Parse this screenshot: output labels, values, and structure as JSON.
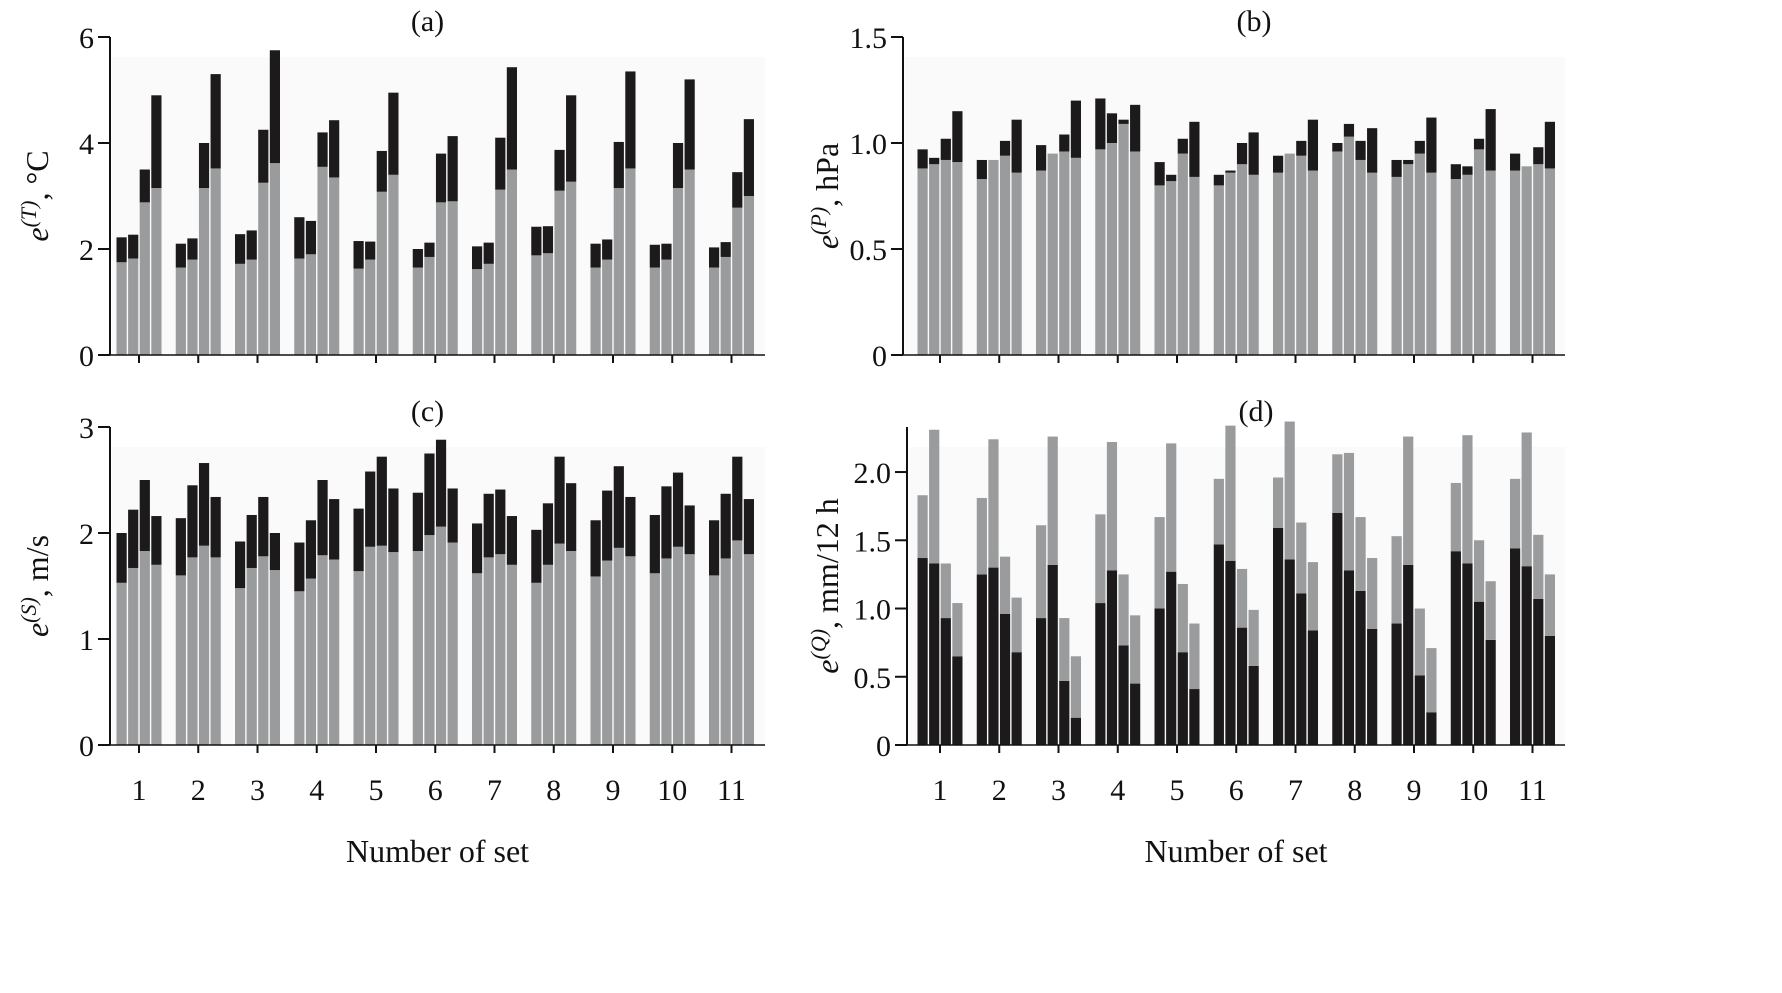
{
  "colors": {
    "gray": "#9a9b9d",
    "black": "#1c1a1b",
    "plot_bg": "#fafafa"
  },
  "chart_data": [
    {
      "type": "bar",
      "stacked": true,
      "panel_label": "(a)",
      "ylabel": {
        "base": "e",
        "sup": "(T)",
        "unit": ", °C"
      },
      "xlabel": "Number of set",
      "categories": [
        "1",
        "2",
        "3",
        "4",
        "5",
        "6",
        "7",
        "8",
        "9",
        "10",
        "11"
      ],
      "ylim": [
        0,
        6
      ],
      "yticks": [
        "0",
        "2",
        "4",
        "6"
      ],
      "ytick_values": [
        0,
        2,
        4,
        6
      ],
      "lower_color": "gray",
      "upper_color": "black",
      "lower": [
        [
          1.75,
          1.82,
          2.88,
          3.15
        ],
        [
          1.65,
          1.8,
          3.15,
          3.52
        ],
        [
          1.72,
          1.8,
          3.25,
          3.62
        ],
        [
          1.82,
          1.9,
          3.55,
          3.35
        ],
        [
          1.63,
          1.8,
          3.08,
          3.4
        ],
        [
          1.65,
          1.85,
          2.88,
          2.9
        ],
        [
          1.62,
          1.72,
          3.12,
          3.5
        ],
        [
          1.88,
          1.92,
          3.1,
          3.27
        ],
        [
          1.65,
          1.8,
          3.15,
          3.52
        ],
        [
          1.65,
          1.8,
          3.15,
          3.5
        ],
        [
          1.65,
          1.85,
          2.78,
          3.0
        ]
      ],
      "total": [
        [
          2.22,
          2.27,
          3.5,
          4.9
        ],
        [
          2.1,
          2.2,
          4.0,
          5.3
        ],
        [
          2.28,
          2.35,
          4.25,
          5.75
        ],
        [
          2.6,
          2.53,
          4.2,
          4.43
        ],
        [
          2.15,
          2.14,
          3.85,
          4.95
        ],
        [
          2.0,
          2.12,
          3.8,
          4.13
        ],
        [
          2.05,
          2.12,
          4.1,
          5.43
        ],
        [
          2.42,
          2.43,
          3.87,
          4.9
        ],
        [
          2.1,
          2.18,
          4.02,
          5.35
        ],
        [
          2.08,
          2.1,
          4.0,
          5.2
        ],
        [
          2.03,
          2.13,
          3.45,
          4.45
        ]
      ]
    },
    {
      "type": "bar",
      "stacked": true,
      "panel_label": "(b)",
      "ylabel": {
        "base": "e",
        "sup": "(P)",
        "unit": ", hPa"
      },
      "xlabel": "Number of set",
      "categories": [
        "1",
        "2",
        "3",
        "4",
        "5",
        "6",
        "7",
        "8",
        "9",
        "10",
        "11"
      ],
      "ylim": [
        0,
        1.5
      ],
      "yticks": [
        "0",
        "0.5",
        "1.0",
        "1.5"
      ],
      "ytick_values": [
        0,
        0.5,
        1.0,
        1.5
      ],
      "lower_color": "gray",
      "upper_color": "black",
      "lower": [
        [
          0.88,
          0.9,
          0.92,
          0.91
        ],
        [
          0.83,
          0.92,
          0.94,
          0.86
        ],
        [
          0.87,
          0.95,
          0.96,
          0.93
        ],
        [
          0.97,
          1.0,
          1.09,
          0.96
        ],
        [
          0.8,
          0.82,
          0.95,
          0.84
        ],
        [
          0.8,
          0.86,
          0.9,
          0.85
        ],
        [
          0.86,
          0.95,
          0.94,
          0.87
        ],
        [
          0.96,
          1.03,
          0.92,
          0.86
        ],
        [
          0.84,
          0.9,
          0.95,
          0.86
        ],
        [
          0.83,
          0.85,
          0.97,
          0.87
        ],
        [
          0.87,
          0.89,
          0.9,
          0.88
        ]
      ],
      "total": [
        [
          0.97,
          0.93,
          1.02,
          1.15
        ],
        [
          0.92,
          0.92,
          1.01,
          1.11
        ],
        [
          0.99,
          0.95,
          1.04,
          1.2
        ],
        [
          1.21,
          1.14,
          1.11,
          1.18
        ],
        [
          0.91,
          0.85,
          1.02,
          1.1
        ],
        [
          0.85,
          0.87,
          1.0,
          1.05
        ],
        [
          0.94,
          0.95,
          1.01,
          1.11
        ],
        [
          1.0,
          1.09,
          1.01,
          1.07
        ],
        [
          0.92,
          0.92,
          1.01,
          1.12
        ],
        [
          0.9,
          0.89,
          1.02,
          1.16
        ],
        [
          0.95,
          0.89,
          0.98,
          1.1
        ]
      ]
    },
    {
      "type": "bar",
      "stacked": true,
      "panel_label": "(c)",
      "ylabel": {
        "base": "e",
        "sup": "(S)",
        "unit": ", m/s"
      },
      "xlabel": "Number of set",
      "categories": [
        "1",
        "2",
        "3",
        "4",
        "5",
        "6",
        "7",
        "8",
        "9",
        "10",
        "11"
      ],
      "ylim": [
        0,
        3
      ],
      "yticks": [
        "0",
        "1",
        "2",
        "3"
      ],
      "ytick_values": [
        0,
        1,
        2,
        3
      ],
      "lower_color": "gray",
      "upper_color": "black",
      "lower": [
        [
          1.53,
          1.67,
          1.83,
          1.7
        ],
        [
          1.6,
          1.77,
          1.88,
          1.77
        ],
        [
          1.48,
          1.67,
          1.78,
          1.65
        ],
        [
          1.45,
          1.57,
          1.79,
          1.75
        ],
        [
          1.64,
          1.87,
          1.88,
          1.82
        ],
        [
          1.83,
          1.98,
          2.06,
          1.91
        ],
        [
          1.62,
          1.77,
          1.8,
          1.7
        ],
        [
          1.53,
          1.7,
          1.9,
          1.83
        ],
        [
          1.59,
          1.74,
          1.86,
          1.78
        ],
        [
          1.62,
          1.76,
          1.87,
          1.8
        ],
        [
          1.6,
          1.76,
          1.93,
          1.8
        ]
      ],
      "total": [
        [
          2.0,
          2.22,
          2.5,
          2.16
        ],
        [
          2.14,
          2.45,
          2.66,
          2.34
        ],
        [
          1.92,
          2.17,
          2.34,
          2.0
        ],
        [
          1.91,
          2.12,
          2.5,
          2.32
        ],
        [
          2.23,
          2.58,
          2.72,
          2.42
        ],
        [
          2.38,
          2.75,
          2.88,
          2.42
        ],
        [
          2.09,
          2.37,
          2.41,
          2.16
        ],
        [
          2.03,
          2.28,
          2.72,
          2.47
        ],
        [
          2.12,
          2.4,
          2.63,
          2.34
        ],
        [
          2.17,
          2.44,
          2.57,
          2.26
        ],
        [
          2.12,
          2.37,
          2.72,
          2.32
        ]
      ]
    },
    {
      "type": "bar",
      "stacked": true,
      "panel_label": "(d)",
      "ylabel": {
        "base": "e",
        "sup": "(Q)",
        "unit": ", mm/12 h"
      },
      "xlabel": "Number of set",
      "categories": [
        "1",
        "2",
        "3",
        "4",
        "5",
        "6",
        "7",
        "8",
        "9",
        "10",
        "11"
      ],
      "ylim": [
        0,
        2.33
      ],
      "yticks": [
        "0",
        "0.5",
        "1.0",
        "1.5",
        "2.0"
      ],
      "ytick_values": [
        0,
        0.5,
        1.0,
        1.5,
        2.0
      ],
      "lower_color": "black",
      "upper_color": "gray",
      "lower": [
        [
          1.37,
          1.33,
          0.93,
          0.65
        ],
        [
          1.25,
          1.3,
          0.96,
          0.68
        ],
        [
          0.93,
          1.32,
          0.47,
          0.2
        ],
        [
          1.04,
          1.28,
          0.73,
          0.45
        ],
        [
          1.0,
          1.27,
          0.68,
          0.41
        ],
        [
          1.47,
          1.35,
          0.86,
          0.58
        ],
        [
          1.59,
          1.36,
          1.11,
          0.84
        ],
        [
          1.7,
          1.28,
          1.13,
          0.85
        ],
        [
          0.89,
          1.32,
          0.51,
          0.24
        ],
        [
          1.42,
          1.33,
          1.05,
          0.77
        ],
        [
          1.44,
          1.31,
          1.07,
          0.8
        ]
      ],
      "total": [
        [
          1.83,
          2.31,
          1.33,
          1.04
        ],
        [
          1.81,
          2.24,
          1.38,
          1.08
        ],
        [
          1.61,
          2.26,
          0.93,
          0.65
        ],
        [
          1.69,
          2.22,
          1.25,
          0.95
        ],
        [
          1.67,
          2.21,
          1.18,
          0.89
        ],
        [
          1.95,
          2.34,
          1.29,
          0.99
        ],
        [
          1.96,
          2.37,
          1.63,
          1.34
        ],
        [
          2.13,
          2.14,
          1.67,
          1.37
        ],
        [
          1.53,
          2.26,
          1.0,
          0.71
        ],
        [
          1.92,
          2.27,
          1.5,
          1.2
        ],
        [
          1.95,
          2.29,
          1.54,
          1.25
        ]
      ]
    }
  ]
}
